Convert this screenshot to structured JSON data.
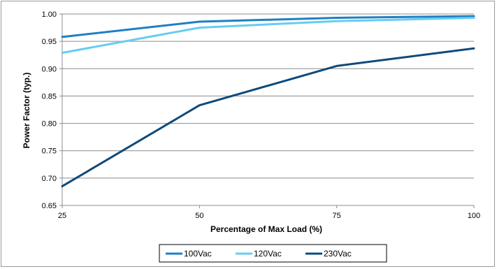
{
  "chart_data": {
    "type": "line",
    "xlabel": "Percentage of Max Load (%)",
    "ylabel": "Power Factor (typ.)",
    "x": [
      25,
      50,
      75,
      100
    ],
    "x_ticks": [
      "25",
      "50",
      "75",
      "100"
    ],
    "xlim": [
      25,
      100
    ],
    "ylim": [
      0.65,
      1.0
    ],
    "y_ticks": [
      "0.65",
      "0.70",
      "0.75",
      "0.80",
      "0.85",
      "0.90",
      "0.95",
      "1.00"
    ],
    "grid": "horizontal",
    "legend_position": "bottom",
    "series": [
      {
        "name": "100Vac",
        "color": "#1f7fc4",
        "values": [
          0.958,
          0.986,
          0.993,
          0.996
        ]
      },
      {
        "name": "120Vac",
        "color": "#66ccf2",
        "values": [
          0.929,
          0.975,
          0.987,
          0.993
        ]
      },
      {
        "name": "230Vac",
        "color": "#0f4a7a",
        "values": [
          0.685,
          0.833,
          0.905,
          0.937
        ]
      }
    ]
  }
}
